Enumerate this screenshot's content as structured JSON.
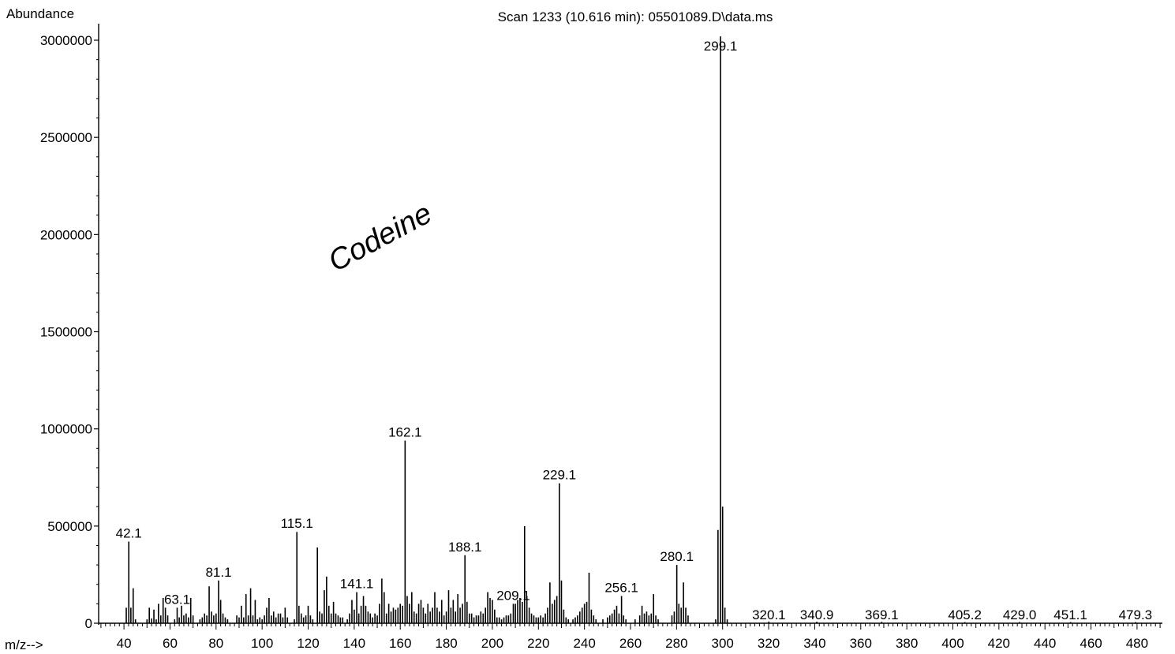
{
  "chart_data": {
    "type": "bar",
    "title": "Scan 1233 (10.616 min): 05501089.D\\data.ms",
    "ylabel": "Abundance",
    "xlabel": "m/z-->",
    "xlim": [
      29,
      491
    ],
    "ylim": [
      0,
      3180000
    ],
    "x_ticks": [
      "40",
      "60",
      "80",
      "100",
      "120",
      "140",
      "160",
      "180",
      "200",
      "220",
      "240",
      "260",
      "280",
      "300",
      "320",
      "340",
      "360",
      "380",
      "400",
      "420",
      "440",
      "460",
      "480"
    ],
    "y_ticks": [
      "0",
      "500000",
      "1000000",
      "1500000",
      "2000000",
      "2500000",
      "3000000"
    ],
    "annotation": "Codeine",
    "peak_labels": [
      {
        "mz": 42.1,
        "text": "42.1"
      },
      {
        "mz": 63.1,
        "text": "63.1"
      },
      {
        "mz": 81.1,
        "text": "81.1"
      },
      {
        "mz": 115.1,
        "text": "115.1"
      },
      {
        "mz": 141.1,
        "text": "141.1"
      },
      {
        "mz": 162.1,
        "text": "162.1"
      },
      {
        "mz": 188.1,
        "text": "188.1"
      },
      {
        "mz": 209.1,
        "text": "209.1"
      },
      {
        "mz": 229.1,
        "text": "229.1"
      },
      {
        "mz": 256.1,
        "text": "256.1"
      },
      {
        "mz": 280.1,
        "text": "280.1"
      },
      {
        "mz": 299.1,
        "text": "299.1"
      },
      {
        "mz": 320.1,
        "text": "320.1"
      },
      {
        "mz": 340.9,
        "text": "340.9"
      },
      {
        "mz": 369.1,
        "text": "369.1"
      },
      {
        "mz": 405.2,
        "text": "405.2"
      },
      {
        "mz": 429.0,
        "text": "429.0"
      },
      {
        "mz": 451.1,
        "text": "451.1"
      },
      {
        "mz": 479.3,
        "text": "479.3"
      }
    ],
    "peaks": [
      [
        41,
        80000
      ],
      [
        42.1,
        420000
      ],
      [
        43,
        80000
      ],
      [
        44,
        180000
      ],
      [
        45,
        20000
      ],
      [
        50,
        20000
      ],
      [
        51,
        80000
      ],
      [
        52,
        25000
      ],
      [
        53,
        70000
      ],
      [
        54,
        20000
      ],
      [
        55,
        100000
      ],
      [
        56,
        40000
      ],
      [
        57,
        130000
      ],
      [
        58,
        80000
      ],
      [
        59,
        40000
      ],
      [
        62,
        20000
      ],
      [
        63.1,
        80000
      ],
      [
        64,
        30000
      ],
      [
        65,
        90000
      ],
      [
        66,
        40000
      ],
      [
        67,
        50000
      ],
      [
        68,
        30000
      ],
      [
        69,
        130000
      ],
      [
        70,
        40000
      ],
      [
        73,
        20000
      ],
      [
        74,
        30000
      ],
      [
        75,
        50000
      ],
      [
        76,
        40000
      ],
      [
        77,
        190000
      ],
      [
        78,
        60000
      ],
      [
        79,
        40000
      ],
      [
        80,
        50000
      ],
      [
        81.1,
        220000
      ],
      [
        82,
        120000
      ],
      [
        83,
        50000
      ],
      [
        84,
        30000
      ],
      [
        85,
        20000
      ],
      [
        89,
        40000
      ],
      [
        90,
        30000
      ],
      [
        91,
        90000
      ],
      [
        92,
        30000
      ],
      [
        93,
        150000
      ],
      [
        94,
        40000
      ],
      [
        95,
        180000
      ],
      [
        96,
        40000
      ],
      [
        97,
        120000
      ],
      [
        98,
        20000
      ],
      [
        99,
        30000
      ],
      [
        100,
        20000
      ],
      [
        101,
        40000
      ],
      [
        102,
        80000
      ],
      [
        103,
        130000
      ],
      [
        104,
        40000
      ],
      [
        105,
        60000
      ],
      [
        106,
        30000
      ],
      [
        107,
        50000
      ],
      [
        108,
        50000
      ],
      [
        109,
        30000
      ],
      [
        110,
        80000
      ],
      [
        111,
        30000
      ],
      [
        114,
        20000
      ],
      [
        115.1,
        470000
      ],
      [
        116,
        90000
      ],
      [
        117,
        50000
      ],
      [
        118,
        30000
      ],
      [
        119,
        40000
      ],
      [
        120,
        90000
      ],
      [
        121,
        40000
      ],
      [
        122,
        20000
      ],
      [
        124,
        390000
      ],
      [
        125,
        60000
      ],
      [
        126,
        50000
      ],
      [
        127,
        170000
      ],
      [
        128,
        240000
      ],
      [
        129,
        90000
      ],
      [
        130,
        50000
      ],
      [
        131,
        110000
      ],
      [
        132,
        50000
      ],
      [
        133,
        40000
      ],
      [
        134,
        30000
      ],
      [
        135,
        30000
      ],
      [
        137,
        20000
      ],
      [
        138,
        50000
      ],
      [
        139,
        120000
      ],
      [
        140,
        70000
      ],
      [
        141.1,
        160000
      ],
      [
        142,
        50000
      ],
      [
        143,
        90000
      ],
      [
        144,
        140000
      ],
      [
        145,
        90000
      ],
      [
        146,
        60000
      ],
      [
        147,
        50000
      ],
      [
        148,
        30000
      ],
      [
        149,
        50000
      ],
      [
        150,
        40000
      ],
      [
        151,
        100000
      ],
      [
        152,
        230000
      ],
      [
        153,
        160000
      ],
      [
        154,
        50000
      ],
      [
        155,
        100000
      ],
      [
        156,
        60000
      ],
      [
        157,
        80000
      ],
      [
        158,
        70000
      ],
      [
        159,
        80000
      ],
      [
        160,
        100000
      ],
      [
        161,
        90000
      ],
      [
        162.1,
        940000
      ],
      [
        163,
        140000
      ],
      [
        164,
        100000
      ],
      [
        165,
        160000
      ],
      [
        166,
        60000
      ],
      [
        167,
        50000
      ],
      [
        168,
        100000
      ],
      [
        169,
        120000
      ],
      [
        170,
        80000
      ],
      [
        171,
        50000
      ],
      [
        172,
        100000
      ],
      [
        173,
        60000
      ],
      [
        174,
        80000
      ],
      [
        175,
        160000
      ],
      [
        176,
        80000
      ],
      [
        177,
        60000
      ],
      [
        178,
        120000
      ],
      [
        179,
        40000
      ],
      [
        180,
        60000
      ],
      [
        181,
        170000
      ],
      [
        182,
        80000
      ],
      [
        183,
        120000
      ],
      [
        184,
        60000
      ],
      [
        185,
        150000
      ],
      [
        186,
        80000
      ],
      [
        187,
        100000
      ],
      [
        188.1,
        350000
      ],
      [
        189,
        110000
      ],
      [
        190,
        50000
      ],
      [
        191,
        50000
      ],
      [
        192,
        30000
      ],
      [
        193,
        40000
      ],
      [
        194,
        40000
      ],
      [
        195,
        60000
      ],
      [
        196,
        50000
      ],
      [
        197,
        80000
      ],
      [
        198,
        160000
      ],
      [
        199,
        130000
      ],
      [
        200,
        120000
      ],
      [
        201,
        70000
      ],
      [
        202,
        30000
      ],
      [
        203,
        30000
      ],
      [
        204,
        20000
      ],
      [
        205,
        30000
      ],
      [
        206,
        40000
      ],
      [
        207,
        40000
      ],
      [
        208,
        50000
      ],
      [
        209.1,
        100000
      ],
      [
        210,
        100000
      ],
      [
        211,
        120000
      ],
      [
        212,
        130000
      ],
      [
        213,
        110000
      ],
      [
        214,
        500000
      ],
      [
        215,
        140000
      ],
      [
        216,
        80000
      ],
      [
        217,
        50000
      ],
      [
        218,
        40000
      ],
      [
        219,
        30000
      ],
      [
        220,
        30000
      ],
      [
        221,
        40000
      ],
      [
        222,
        30000
      ],
      [
        223,
        50000
      ],
      [
        224,
        80000
      ],
      [
        225,
        210000
      ],
      [
        226,
        100000
      ],
      [
        227,
        120000
      ],
      [
        228,
        140000
      ],
      [
        229.1,
        720000
      ],
      [
        230,
        220000
      ],
      [
        231,
        70000
      ],
      [
        232,
        30000
      ],
      [
        233,
        20000
      ],
      [
        235,
        20000
      ],
      [
        236,
        30000
      ],
      [
        237,
        40000
      ],
      [
        238,
        60000
      ],
      [
        239,
        80000
      ],
      [
        240,
        100000
      ],
      [
        241,
        110000
      ],
      [
        242,
        260000
      ],
      [
        243,
        70000
      ],
      [
        244,
        40000
      ],
      [
        245,
        20000
      ],
      [
        248,
        20000
      ],
      [
        250,
        30000
      ],
      [
        251,
        40000
      ],
      [
        252,
        50000
      ],
      [
        253,
        70000
      ],
      [
        254,
        90000
      ],
      [
        255,
        50000
      ],
      [
        256.1,
        140000
      ],
      [
        257,
        40000
      ],
      [
        258,
        20000
      ],
      [
        262,
        20000
      ],
      [
        264,
        40000
      ],
      [
        265,
        90000
      ],
      [
        266,
        50000
      ],
      [
        267,
        60000
      ],
      [
        268,
        40000
      ],
      [
        269,
        50000
      ],
      [
        270,
        150000
      ],
      [
        271,
        40000
      ],
      [
        272,
        20000
      ],
      [
        278,
        40000
      ],
      [
        279,
        60000
      ],
      [
        280.1,
        300000
      ],
      [
        281,
        100000
      ],
      [
        282,
        80000
      ],
      [
        283,
        210000
      ],
      [
        284,
        80000
      ],
      [
        285,
        40000
      ],
      [
        297,
        20000
      ],
      [
        298,
        480000
      ],
      [
        299.1,
        3020000
      ],
      [
        300,
        600000
      ],
      [
        301,
        80000
      ],
      [
        302,
        20000
      ],
      [
        320.1,
        9000
      ],
      [
        340.9,
        8000
      ],
      [
        369.1,
        7000
      ],
      [
        405.2,
        6000
      ],
      [
        429.0,
        6000
      ],
      [
        451.1,
        6000
      ],
      [
        479.3,
        6000
      ]
    ]
  }
}
